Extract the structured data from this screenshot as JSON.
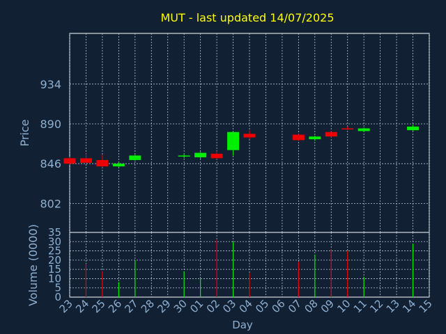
{
  "chart_data": [
    {
      "type": "candlestick",
      "title": "MUT - last updated 14/07/2025",
      "ylabel": "Price",
      "xlabel": "",
      "ylim": [
        770,
        990
      ],
      "yticks": [
        802,
        846,
        890,
        934
      ],
      "grid": true,
      "categories": [
        "23",
        "24",
        "25",
        "26",
        "27",
        "28",
        "29",
        "30",
        "01",
        "02",
        "03",
        "04",
        "05",
        "06",
        "07",
        "08",
        "09",
        "10",
        "11",
        "12",
        "13",
        "14",
        "15"
      ],
      "candles": [
        {
          "day": "23",
          "open": 852,
          "high": 853,
          "low": 845,
          "close": 846
        },
        {
          "day": "24",
          "open": 852,
          "high": 857,
          "low": 846,
          "close": 847
        },
        {
          "day": "25",
          "open": 850,
          "high": 856,
          "low": 842,
          "close": 843
        },
        {
          "day": "26",
          "open": 843,
          "high": 848,
          "low": 842,
          "close": 846
        },
        {
          "day": "27",
          "open": 850,
          "high": 856,
          "low": 849,
          "close": 855
        },
        {
          "day": "30",
          "open": 854,
          "high": 857,
          "low": 852,
          "close": 855
        },
        {
          "day": "01",
          "open": 853,
          "high": 859,
          "low": 851,
          "close": 858
        },
        {
          "day": "02",
          "open": 857,
          "high": 860,
          "low": 851,
          "close": 852
        },
        {
          "day": "03",
          "open": 861,
          "high": 882,
          "low": 855,
          "close": 881
        },
        {
          "day": "04",
          "open": 879,
          "high": 883,
          "low": 873,
          "close": 875
        },
        {
          "day": "07",
          "open": 878,
          "high": 879,
          "low": 871,
          "close": 872
        },
        {
          "day": "08",
          "open": 873,
          "high": 877,
          "low": 871,
          "close": 876
        },
        {
          "day": "09",
          "open": 881,
          "high": 882,
          "low": 875,
          "close": 876
        },
        {
          "day": "10",
          "open": 885,
          "high": 887,
          "low": 883,
          "close": 884
        },
        {
          "day": "11",
          "open": 882,
          "high": 886,
          "low": 881,
          "close": 885
        },
        {
          "day": "14",
          "open": 883,
          "high": 889,
          "low": 882,
          "close": 887
        }
      ],
      "colors": {
        "up": "#00ee00",
        "down": "#ee0000"
      }
    },
    {
      "type": "bar",
      "ylabel": "Volume (0000)",
      "xlabel": "Day",
      "ylim": [
        0,
        35
      ],
      "yticks": [
        0,
        5,
        10,
        15,
        20,
        25,
        30,
        35
      ],
      "grid": true,
      "categories": [
        "23",
        "24",
        "25",
        "26",
        "27",
        "28",
        "29",
        "30",
        "01",
        "02",
        "03",
        "04",
        "05",
        "06",
        "07",
        "08",
        "09",
        "10",
        "11",
        "12",
        "13",
        "14",
        "15"
      ],
      "values": [
        {
          "day": "24",
          "value": 18,
          "direction": "down"
        },
        {
          "day": "25",
          "value": 14,
          "direction": "down"
        },
        {
          "day": "26",
          "value": 8,
          "direction": "up"
        },
        {
          "day": "27",
          "value": 20,
          "direction": "up"
        },
        {
          "day": "30",
          "value": 14,
          "direction": "up"
        },
        {
          "day": "01",
          "value": 10,
          "direction": "up"
        },
        {
          "day": "02",
          "value": 31,
          "direction": "down"
        },
        {
          "day": "03",
          "value": 30,
          "direction": "up"
        },
        {
          "day": "04",
          "value": 13,
          "direction": "down"
        },
        {
          "day": "07",
          "value": 19,
          "direction": "down"
        },
        {
          "day": "08",
          "value": 23,
          "direction": "up"
        },
        {
          "day": "09",
          "value": 26,
          "direction": "down"
        },
        {
          "day": "10",
          "value": 25,
          "direction": "down"
        },
        {
          "day": "11",
          "value": 11,
          "direction": "up"
        },
        {
          "day": "14",
          "value": 29,
          "direction": "up"
        }
      ]
    }
  ],
  "colors": {
    "background": "#112033",
    "title": "#ffff00",
    "axis_text": "#8fb0d0",
    "axis_line": "#ffffff",
    "grid": "#b7c8d8"
  }
}
